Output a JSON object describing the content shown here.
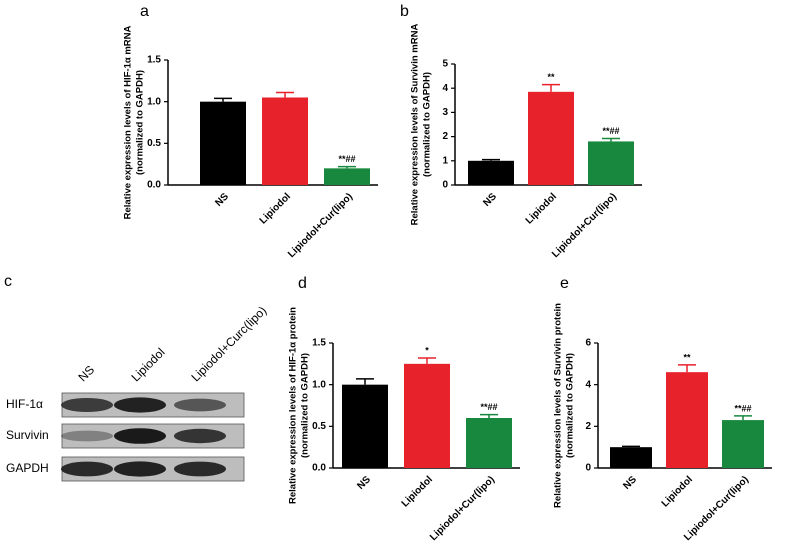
{
  "chart_data": [
    {
      "type": "bar",
      "panel": "a",
      "ylabel": [
        "Relative expression levels of HIF-1α mRNA",
        "(normalized to GAPDH)"
      ],
      "categories": [
        "NS",
        "Lipiodol",
        "Lipiodol+Cur(lipo)"
      ],
      "values": [
        1.0,
        1.05,
        0.2
      ],
      "errors": [
        0.04,
        0.06,
        0.02
      ],
      "annotations": [
        null,
        null,
        "**##"
      ],
      "colors": [
        "#000000",
        "#e8222b",
        "#17883d"
      ],
      "ylim": [
        0,
        1.5
      ],
      "yticks": [
        {
          "value": 0,
          "label": "0.0"
        },
        {
          "value": 0.5,
          "label": "0.5"
        },
        {
          "value": 1,
          "label": "1.0"
        },
        {
          "value": 1.5,
          "label": "1.5"
        }
      ]
    },
    {
      "type": "bar",
      "panel": "b",
      "ylabel": [
        "Relative expression levels of Survivin mRNA",
        "(normalized to GAPDH)"
      ],
      "categories": [
        "NS",
        "Lipiodol",
        "Lipiodol+Cur(lipo)"
      ],
      "values": [
        1.0,
        3.85,
        1.8
      ],
      "errors": [
        0.05,
        0.3,
        0.12
      ],
      "annotations": [
        null,
        "**",
        "**##"
      ],
      "colors": [
        "#000000",
        "#e8222b",
        "#17883d"
      ],
      "ylim": [
        0,
        5
      ],
      "yticks": [
        0,
        1,
        2,
        3,
        4,
        5
      ]
    },
    {
      "type": "bar",
      "panel": "d",
      "ylabel": [
        "Relative expression levels of HIF-1α protein",
        "(normalized to GAPDH)"
      ],
      "categories": [
        "NS",
        "Lipiodol",
        "Lipiodol+Cur(lipo)"
      ],
      "values": [
        1.0,
        1.25,
        0.6
      ],
      "errors": [
        0.07,
        0.07,
        0.04
      ],
      "annotations": [
        null,
        "*",
        "**##"
      ],
      "colors": [
        "#000000",
        "#e8222b",
        "#17883d"
      ],
      "ylim": [
        0,
        1.5
      ],
      "yticks": [
        {
          "value": 0,
          "label": "0.0"
        },
        {
          "value": 0.5,
          "label": "0.5"
        },
        {
          "value": 1,
          "label": "1.0"
        },
        {
          "value": 1.5,
          "label": "1.5"
        }
      ]
    },
    {
      "type": "bar",
      "panel": "e",
      "ylabel": [
        "Relative expression levels of Survivin protein",
        "(normalized to GAPDH)"
      ],
      "categories": [
        "NS",
        "Lipiodol",
        "Lipiodol+Cur(lipo)"
      ],
      "values": [
        1.0,
        4.6,
        2.3
      ],
      "errors": [
        0.04,
        0.35,
        0.2
      ],
      "annotations": [
        null,
        "**",
        "**##"
      ],
      "colors": [
        "#000000",
        "#e8222b",
        "#17883d"
      ],
      "ylim": [
        0,
        6
      ],
      "yticks": [
        0,
        2,
        4,
        6
      ]
    }
  ],
  "blot": {
    "panel": "c",
    "lanes": [
      "NS",
      "Lipiodol",
      "Lipiodol+Curc(lipo)"
    ],
    "rows": [
      "HIF-1α",
      "Survivin",
      "GAPDH"
    ]
  }
}
